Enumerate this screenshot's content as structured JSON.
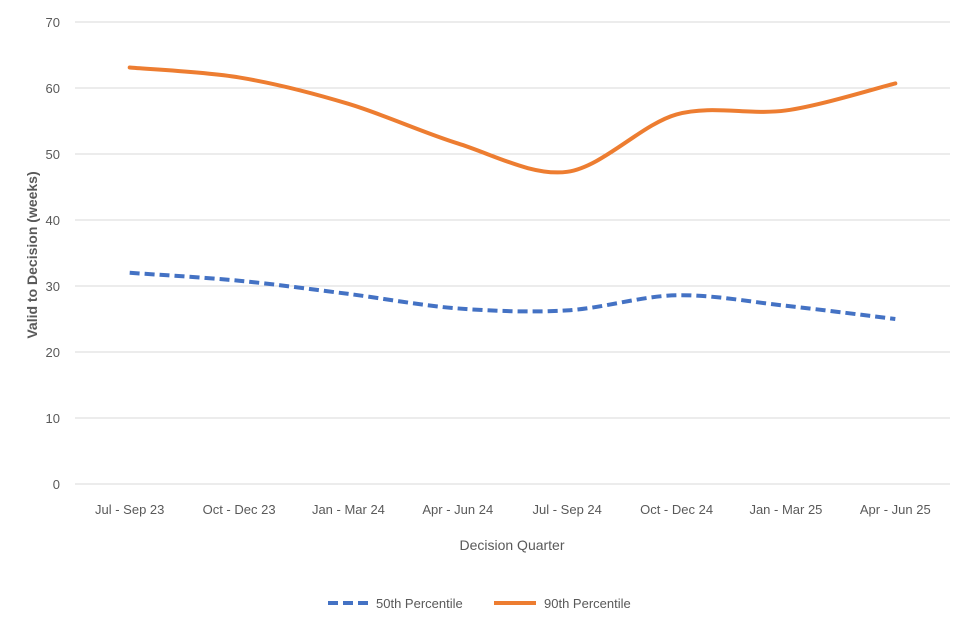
{
  "chart_data": {
    "type": "line",
    "title": "",
    "xlabel": "Decision Quarter",
    "ylabel": "Valid to Decision (weeks)",
    "ylim": [
      0,
      70
    ],
    "yticks": [
      0,
      10,
      20,
      30,
      40,
      50,
      60,
      70
    ],
    "grid": true,
    "legend_position": "bottom",
    "categories": [
      "Jul - Sep 23",
      "Oct - Dec 23",
      "Jan - Mar 24",
      "Apr - Jun 24",
      "Jul - Sep 24",
      "Oct - Dec 24",
      "Jan - Mar 25",
      "Apr - Jun 25"
    ],
    "series": [
      {
        "name": "50th Percentile",
        "color": "#4472c4",
        "dash": "dashed",
        "values": [
          32.0,
          30.8,
          28.8,
          26.6,
          26.3,
          28.6,
          27.0,
          25.0
        ]
      },
      {
        "name": "90th Percentile",
        "color": "#ed7d31",
        "dash": "solid",
        "values": [
          63.1,
          61.6,
          57.6,
          51.6,
          47.3,
          56.0,
          56.6,
          60.7
        ]
      }
    ]
  }
}
